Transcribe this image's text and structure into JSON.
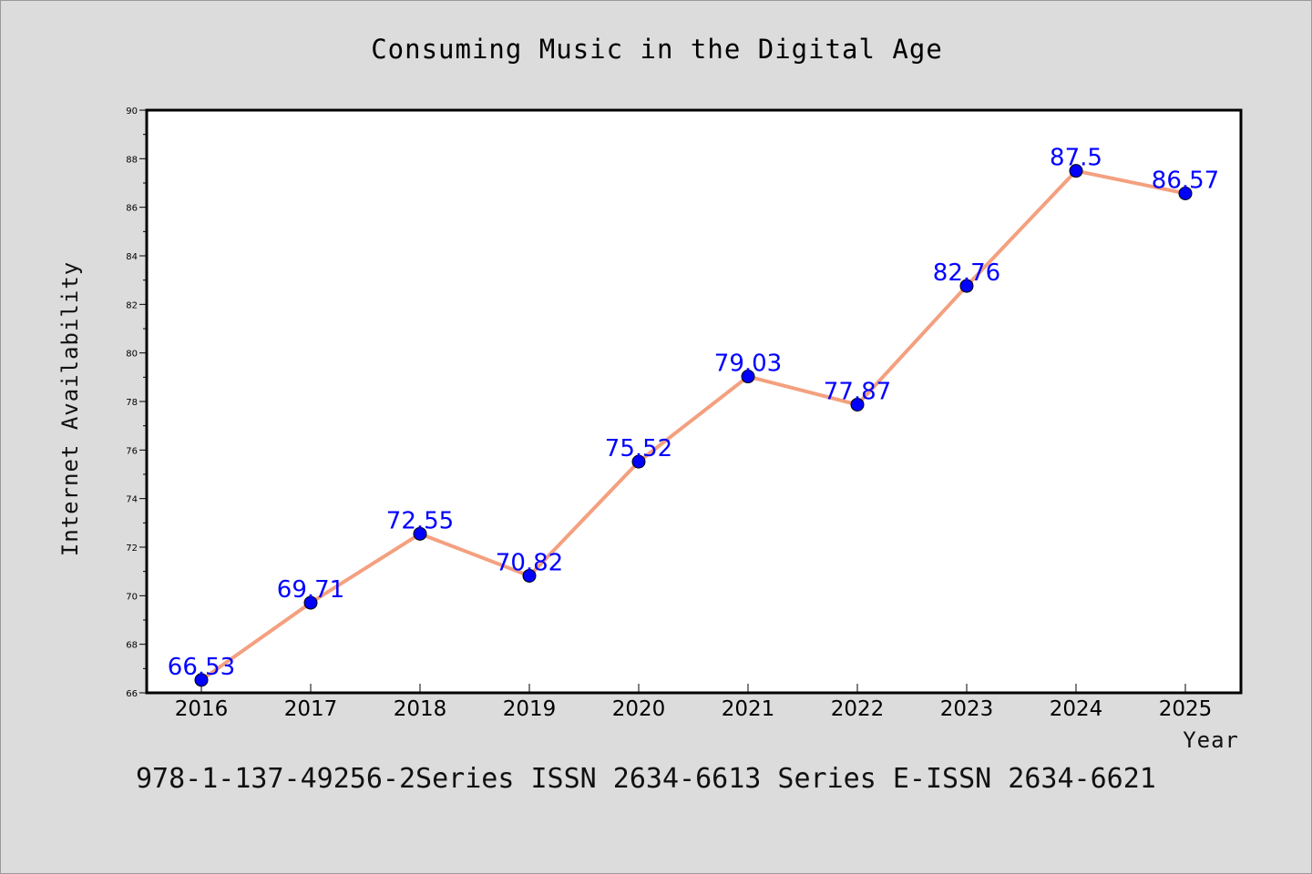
{
  "chart_data": {
    "type": "line",
    "title": "Consuming Music in the Digital Age",
    "xlabel": "Year",
    "ylabel": "Internet Availability",
    "x": [
      "2016",
      "2017",
      "2018",
      "2019",
      "2020",
      "2021",
      "2022",
      "2023",
      "2024",
      "2025"
    ],
    "series": [
      {
        "values": [
          66.53,
          69.71,
          72.55,
          70.82,
          75.52,
          79.03,
          77.87,
          82.76,
          87.5,
          86.57
        ],
        "data_labels": [
          "66.53",
          "69.71",
          "72.55",
          "70.82",
          "75.52",
          "79.03",
          "77.87",
          "82.76",
          "87.5",
          "86.57"
        ],
        "line_color": "#f4a07f",
        "marker_color": "#0000ff"
      }
    ],
    "ylim": [
      66,
      90
    ],
    "yticks": [
      66,
      68,
      70,
      72,
      74,
      76,
      78,
      80,
      82,
      84,
      86,
      88,
      90
    ],
    "grid": false,
    "legend": "none"
  },
  "footer": {
    "text": "978-1-137-49256-2Series ISSN 2634-6613 Series E-ISSN 2634-6621"
  },
  "colors": {
    "background": "#dcdcdc",
    "plot_background": "#ffffff"
  }
}
